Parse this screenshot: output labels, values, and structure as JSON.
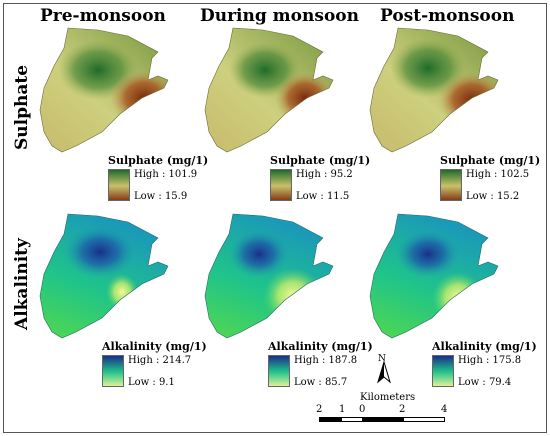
{
  "columns": [
    "Pre-monsoon",
    "During monsoon",
    "Post-monsoon"
  ],
  "rows": [
    "Sulphate",
    "Alkalinity"
  ],
  "colors": {
    "sulphate_high": "#1f6b2a",
    "sulphate_mid": "#c9c16a",
    "sulphate_low": "#7a2a0e",
    "alkalinity_high": "#1a2f8a",
    "alkalinity_mid": "#21c48a",
    "alkalinity_low": "#f7f79a"
  },
  "legends": {
    "sulphate": [
      {
        "title": "Sulphate (mg/1)",
        "high": "High : 101.9",
        "low": "Low : 15.9",
        "high_value": 101.9,
        "low_value": 15.9
      },
      {
        "title": "Sulphate (mg/1)",
        "high": "High : 95.2",
        "low": "Low : 11.5",
        "high_value": 95.2,
        "low_value": 11.5
      },
      {
        "title": "Sulphate (mg/1)",
        "high": "High : 102.5",
        "low": "Low : 15.2",
        "high_value": 102.5,
        "low_value": 15.2
      }
    ],
    "alkalinity": [
      {
        "title": "Alkalinity (mg/1)",
        "high": "High : 214.7",
        "low": "Low : 9.1",
        "high_value": 214.7,
        "low_value": 9.1
      },
      {
        "title": "Alkalinity (mg/1)",
        "high": "High : 187.8",
        "low": "Low : 85.7",
        "high_value": 187.8,
        "low_value": 85.7
      },
      {
        "title": "Alkalinity (mg/1)",
        "high": "High : 175.8",
        "low": "Low : 79.4",
        "high_value": 175.8,
        "low_value": 79.4
      }
    ]
  },
  "north_label": "N",
  "scale": {
    "unit": "Kilometers",
    "ticks": [
      "2",
      "1",
      "0",
      "2",
      "4"
    ]
  }
}
